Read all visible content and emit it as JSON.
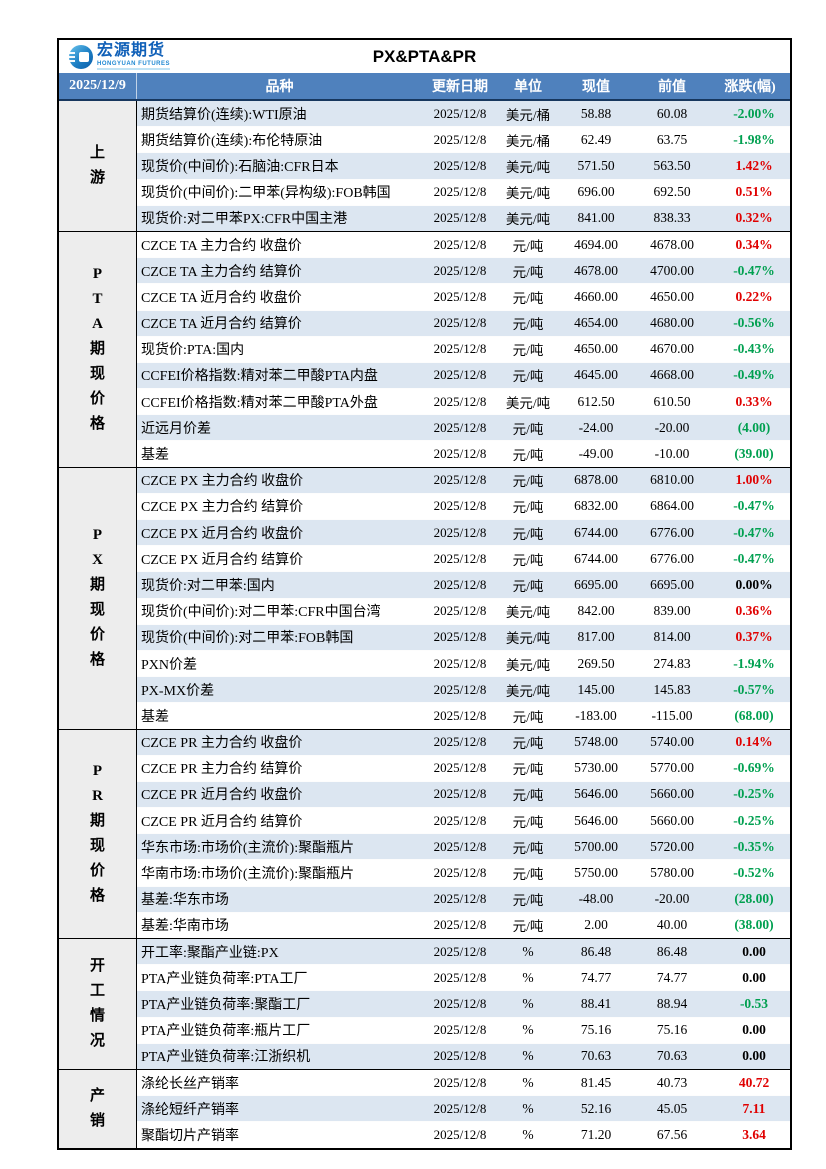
{
  "report_date": "2025/12/9",
  "title": "PX&PTA&PR",
  "brand": {
    "name": "宏源期货",
    "subtitle": "HONGYUAN FUTURES"
  },
  "colors": {
    "header_bg": "#4F81BD",
    "header_divider": "#17375E",
    "row_alt_blue": "#DCE6F1",
    "section_label_bg": "#EDEDED",
    "up_red": "#E00000",
    "down_green": "#00A050",
    "brand_blue": "#1060B8"
  },
  "table": {
    "columns": [
      "品种",
      "更新日期",
      "单位",
      "现值",
      "前值",
      "涨跌(幅)"
    ],
    "sections": [
      {
        "label": "上游",
        "rows": [
          {
            "name": "期货结算价(连续):WTI原油",
            "date": "2025/12/8",
            "unit": "美元/桶",
            "current": "58.88",
            "previous": "60.08",
            "change": "-2.00%",
            "direction": "down"
          },
          {
            "name": "期货结算价(连续):布伦特原油",
            "date": "2025/12/8",
            "unit": "美元/桶",
            "current": "62.49",
            "previous": "63.75",
            "change": "-1.98%",
            "direction": "down"
          },
          {
            "name": "现货价(中间价):石脑油:CFR日本",
            "date": "2025/12/8",
            "unit": "美元/吨",
            "current": "571.50",
            "previous": "563.50",
            "change": "1.42%",
            "direction": "up"
          },
          {
            "name": "现货价(中间价):二甲苯(异构级):FOB韩国",
            "date": "2025/12/8",
            "unit": "美元/吨",
            "current": "696.00",
            "previous": "692.50",
            "change": "0.51%",
            "direction": "up"
          },
          {
            "name": "现货价:对二甲苯PX:CFR中国主港",
            "date": "2025/12/8",
            "unit": "美元/吨",
            "current": "841.00",
            "previous": "838.33",
            "change": "0.32%",
            "direction": "up"
          }
        ]
      },
      {
        "label": "PTA期现价格",
        "rows": [
          {
            "name": "CZCE TA 主力合约 收盘价",
            "date": "2025/12/8",
            "unit": "元/吨",
            "current": "4694.00",
            "previous": "4678.00",
            "change": "0.34%",
            "direction": "up"
          },
          {
            "name": "CZCE TA 主力合约 结算价",
            "date": "2025/12/8",
            "unit": "元/吨",
            "current": "4678.00",
            "previous": "4700.00",
            "change": "-0.47%",
            "direction": "down"
          },
          {
            "name": "CZCE TA 近月合约 收盘价",
            "date": "2025/12/8",
            "unit": "元/吨",
            "current": "4660.00",
            "previous": "4650.00",
            "change": "0.22%",
            "direction": "up"
          },
          {
            "name": "CZCE TA 近月合约 结算价",
            "date": "2025/12/8",
            "unit": "元/吨",
            "current": "4654.00",
            "previous": "4680.00",
            "change": "-0.56%",
            "direction": "down"
          },
          {
            "name": "现货价:PTA:国内",
            "date": "2025/12/8",
            "unit": "元/吨",
            "current": "4650.00",
            "previous": "4670.00",
            "change": "-0.43%",
            "direction": "down"
          },
          {
            "name": "CCFEI价格指数:精对苯二甲酸PTA内盘",
            "date": "2025/12/8",
            "unit": "元/吨",
            "current": "4645.00",
            "previous": "4668.00",
            "change": "-0.49%",
            "direction": "down"
          },
          {
            "name": "CCFEI价格指数:精对苯二甲酸PTA外盘",
            "date": "2025/12/8",
            "unit": "美元/吨",
            "current": "612.50",
            "previous": "610.50",
            "change": "0.33%",
            "direction": "up"
          },
          {
            "name": "近远月价差",
            "date": "2025/12/8",
            "unit": "元/吨",
            "current": "-24.00",
            "previous": "-20.00",
            "change": "(4.00)",
            "direction": "down"
          },
          {
            "name": "基差",
            "date": "2025/12/8",
            "unit": "元/吨",
            "current": "-49.00",
            "previous": "-10.00",
            "change": "(39.00)",
            "direction": "down"
          }
        ]
      },
      {
        "label": "PX期现价格",
        "rows": [
          {
            "name": "CZCE PX 主力合约 收盘价",
            "date": "2025/12/8",
            "unit": "元/吨",
            "current": "6878.00",
            "previous": "6810.00",
            "change": "1.00%",
            "direction": "up"
          },
          {
            "name": "CZCE PX 主力合约 结算价",
            "date": "2025/12/8",
            "unit": "元/吨",
            "current": "6832.00",
            "previous": "6864.00",
            "change": "-0.47%",
            "direction": "down"
          },
          {
            "name": "CZCE PX 近月合约 收盘价",
            "date": "2025/12/8",
            "unit": "元/吨",
            "current": "6744.00",
            "previous": "6776.00",
            "change": "-0.47%",
            "direction": "down"
          },
          {
            "name": "CZCE PX 近月合约 结算价",
            "date": "2025/12/8",
            "unit": "元/吨",
            "current": "6744.00",
            "previous": "6776.00",
            "change": "-0.47%",
            "direction": "down"
          },
          {
            "name": "现货价:对二甲苯:国内",
            "date": "2025/12/8",
            "unit": "元/吨",
            "current": "6695.00",
            "previous": "6695.00",
            "change": "0.00%",
            "direction": "flat"
          },
          {
            "name": "现货价(中间价):对二甲苯:CFR中国台湾",
            "date": "2025/12/8",
            "unit": "美元/吨",
            "current": "842.00",
            "previous": "839.00",
            "change": "0.36%",
            "direction": "up"
          },
          {
            "name": "现货价(中间价):对二甲苯:FOB韩国",
            "date": "2025/12/8",
            "unit": "美元/吨",
            "current": "817.00",
            "previous": "814.00",
            "change": "0.37%",
            "direction": "up"
          },
          {
            "name": "PXN价差",
            "date": "2025/12/8",
            "unit": "美元/吨",
            "current": "269.50",
            "previous": "274.83",
            "change": "-1.94%",
            "direction": "down"
          },
          {
            "name": "PX-MX价差",
            "date": "2025/12/8",
            "unit": "美元/吨",
            "current": "145.00",
            "previous": "145.83",
            "change": "-0.57%",
            "direction": "down"
          },
          {
            "name": "基差",
            "date": "2025/12/8",
            "unit": "元/吨",
            "current": "-183.00",
            "previous": "-115.00",
            "change": "(68.00)",
            "direction": "down"
          }
        ]
      },
      {
        "label": "PR期现价格",
        "rows": [
          {
            "name": "CZCE PR 主力合约 收盘价",
            "date": "2025/12/8",
            "unit": "元/吨",
            "current": "5748.00",
            "previous": "5740.00",
            "change": "0.14%",
            "direction": "up"
          },
          {
            "name": "CZCE PR 主力合约 结算价",
            "date": "2025/12/8",
            "unit": "元/吨",
            "current": "5730.00",
            "previous": "5770.00",
            "change": "-0.69%",
            "direction": "down"
          },
          {
            "name": "CZCE PR 近月合约 收盘价",
            "date": "2025/12/8",
            "unit": "元/吨",
            "current": "5646.00",
            "previous": "5660.00",
            "change": "-0.25%",
            "direction": "down"
          },
          {
            "name": "CZCE PR 近月合约 结算价",
            "date": "2025/12/8",
            "unit": "元/吨",
            "current": "5646.00",
            "previous": "5660.00",
            "change": "-0.25%",
            "direction": "down"
          },
          {
            "name": "华东市场:市场价(主流价):聚酯瓶片",
            "date": "2025/12/8",
            "unit": "元/吨",
            "current": "5700.00",
            "previous": "5720.00",
            "change": "-0.35%",
            "direction": "down"
          },
          {
            "name": "华南市场:市场价(主流价):聚酯瓶片",
            "date": "2025/12/8",
            "unit": "元/吨",
            "current": "5750.00",
            "previous": "5780.00",
            "change": "-0.52%",
            "direction": "down"
          },
          {
            "name": "基差:华东市场",
            "date": "2025/12/8",
            "unit": "元/吨",
            "current": "-48.00",
            "previous": "-20.00",
            "change": "(28.00)",
            "direction": "down"
          },
          {
            "name": "基差:华南市场",
            "date": "2025/12/8",
            "unit": "元/吨",
            "current": "2.00",
            "previous": "40.00",
            "change": "(38.00)",
            "direction": "down"
          }
        ]
      },
      {
        "label": "开工情况",
        "rows": [
          {
            "name": "开工率:聚酯产业链:PX",
            "date": "2025/12/8",
            "unit": "%",
            "current": "86.48",
            "previous": "86.48",
            "change": "0.00",
            "direction": "flat"
          },
          {
            "name": "PTA产业链负荷率:PTA工厂",
            "date": "2025/12/8",
            "unit": "%",
            "current": "74.77",
            "previous": "74.77",
            "change": "0.00",
            "direction": "flat"
          },
          {
            "name": "PTA产业链负荷率:聚酯工厂",
            "date": "2025/12/8",
            "unit": "%",
            "current": "88.41",
            "previous": "88.94",
            "change": "-0.53",
            "direction": "down"
          },
          {
            "name": "PTA产业链负荷率:瓶片工厂",
            "date": "2025/12/8",
            "unit": "%",
            "current": "75.16",
            "previous": "75.16",
            "change": "0.00",
            "direction": "flat"
          },
          {
            "name": "PTA产业链负荷率:江浙织机",
            "date": "2025/12/8",
            "unit": "%",
            "current": "70.63",
            "previous": "70.63",
            "change": "0.00",
            "direction": "flat"
          }
        ]
      },
      {
        "label": "产销",
        "rows": [
          {
            "name": "涤纶长丝产销率",
            "date": "2025/12/8",
            "unit": "%",
            "current": "81.45",
            "previous": "40.73",
            "change": "40.72",
            "direction": "up"
          },
          {
            "name": "涤纶短纤产销率",
            "date": "2025/12/8",
            "unit": "%",
            "current": "52.16",
            "previous": "45.05",
            "change": "7.11",
            "direction": "up"
          },
          {
            "name": "聚酯切片产销率",
            "date": "2025/12/8",
            "unit": "%",
            "current": "71.20",
            "previous": "67.56",
            "change": "3.64",
            "direction": "up"
          }
        ]
      }
    ]
  }
}
